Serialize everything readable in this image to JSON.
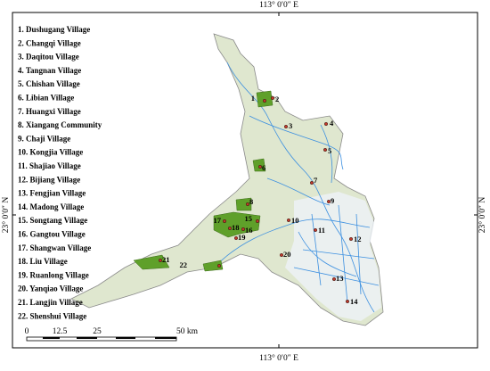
{
  "map": {
    "top_label": "113° 0′0″ E",
    "bottom_label": "113° 0′0″ E",
    "left_label": "23° 0′0″ N",
    "right_label": "23° 0′0″ N",
    "legend": [
      "1. Dushugang Village",
      "2. Changqi Village",
      "3. Daqitou Village",
      "4. Tangnan Village",
      "5. Chishan Village",
      "6. Libian Village",
      "7. Huangxi Village",
      "8. Xiangang Community",
      "9. Chaji Village",
      "10. Kongjia Village",
      "11. Shajiao Village",
      "12. Bijiang Village",
      "13. Fengjian Village",
      "14. Madong Village",
      "15. Songtang Village",
      "16. Gangtou Village",
      "17. Shangwan Village",
      "18. Liu Village",
      "19. Ruanlong Village",
      "20. Yanqiao Village",
      "21. Langjin Village",
      "22. Shenshui Village"
    ],
    "scale_bar": [
      "0",
      "12.5",
      "25",
      "50 km"
    ],
    "markers": [
      "1",
      "2",
      "3",
      "4",
      "5",
      "6",
      "7",
      "8",
      "9",
      "10",
      "11",
      "12",
      "13",
      "14",
      "15",
      "16",
      "17",
      "18",
      "19",
      "20",
      "21",
      "22"
    ]
  }
}
